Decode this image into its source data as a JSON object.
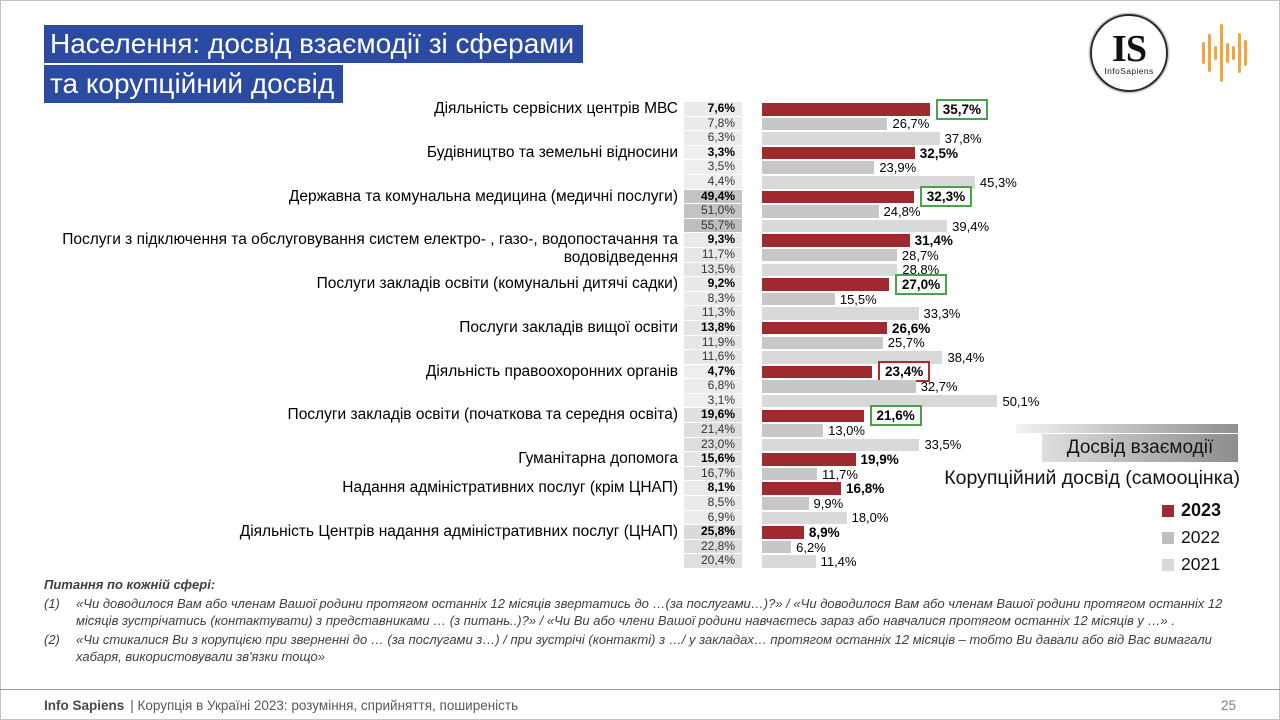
{
  "title": {
    "line1": "Населення: досвід взаємодії зі сферами",
    "line2": "та корупційний досвід"
  },
  "logos": {
    "is_initials": "IS",
    "is_name": "InfoSapiens",
    "wave_color": "#f0a63c"
  },
  "chart_data": {
    "type": "bar",
    "orientation": "horizontal",
    "title": "Населення: досвід взаємодії зі сферами та корупційний досвід",
    "series_labels": [
      "2023",
      "2022",
      "2021"
    ],
    "colors": {
      "y2023": "#9e2a2f",
      "y2022": "#c7c7c7",
      "y2021": "#d9d9d9"
    },
    "interaction_header": "Досвід взаємодії",
    "corruption_header": "Корупційний досвід (самооцінка)",
    "value_suffix": "%",
    "xlim": [
      0,
      56
    ],
    "rows": [
      {
        "label": "Діяльність сервісних центрів МВС",
        "interaction": [
          7.6,
          7.8,
          6.3
        ],
        "corruption": [
          35.7,
          26.7,
          37.8
        ],
        "box": "green"
      },
      {
        "label": "Будівництво та земельні відносини",
        "interaction": [
          3.3,
          3.5,
          4.4
        ],
        "corruption": [
          32.5,
          23.9,
          45.3
        ],
        "box": null
      },
      {
        "label": "Державна та комунальна медицина (медичні послуги)",
        "interaction": [
          49.4,
          51.0,
          55.7
        ],
        "corruption": [
          32.3,
          24.8,
          39.4
        ],
        "box": "green"
      },
      {
        "label": "Послуги з підключення та обслуговування систем електро- , газо-, водопостачання та водовідведення",
        "interaction": [
          9.3,
          11.7,
          13.5
        ],
        "corruption": [
          31.4,
          28.7,
          28.8
        ],
        "box": null
      },
      {
        "label": "Послуги закладів освіти (комунальні дитячі садки)",
        "interaction": [
          9.2,
          8.3,
          11.3
        ],
        "corruption": [
          27.0,
          15.5,
          33.3
        ],
        "box": "green"
      },
      {
        "label": "Послуги закладів вищої освіти",
        "interaction": [
          13.8,
          11.9,
          11.6
        ],
        "corruption": [
          26.6,
          25.7,
          38.4
        ],
        "box": null
      },
      {
        "label": "Діяльність правоохоронних органів",
        "interaction": [
          4.7,
          6.8,
          3.1
        ],
        "corruption": [
          23.4,
          32.7,
          50.1
        ],
        "box": "red"
      },
      {
        "label": "Послуги закладів освіти (початкова та середня освіта)",
        "interaction": [
          19.6,
          21.4,
          23.0
        ],
        "corruption": [
          21.6,
          13.0,
          33.5
        ],
        "box": "green"
      },
      {
        "label": "Гуманітарна допомога",
        "interaction": [
          15.6,
          16.7
        ],
        "corruption": [
          19.9,
          11.7
        ],
        "box": null
      },
      {
        "label": "Надання адміністративних послуг (крім ЦНАП)",
        "interaction": [
          8.1,
          8.5,
          6.9
        ],
        "corruption": [
          16.8,
          9.9,
          18.0
        ],
        "box": null
      },
      {
        "label": "Діяльність Центрів надання адміністративних послуг (ЦНАП)",
        "interaction": [
          25.8,
          22.8,
          20.4
        ],
        "corruption": [
          8.9,
          6.2,
          11.4
        ],
        "box": null
      }
    ],
    "legend": [
      {
        "label": "2023",
        "color": "#9e2a2f"
      },
      {
        "label": "2022",
        "color": "#bfbfbf"
      },
      {
        "label": "2021",
        "color": "#d9d9d9"
      }
    ]
  },
  "footnotes": {
    "heading": "Питання по кожній сфері:",
    "items": [
      {
        "num": "(1)",
        "text": "«Чи доводилося Вам або членам Вашої родини протягом останніх 12 місяців звертатись до …(за послугами…)?» / «Чи доводилося Вам або членам Вашої родини протягом останніх 12 місяців зустрічатись (контактувати) з представниками … (з питань..)?» / «Чи Ви або члени Вашої родини навчаєтесь зараз або навчалися протягом останніх 12 місяців у …» ."
      },
      {
        "num": "(2)",
        "text": "«Чи стикалися Ви з корупцією при зверненні до … (за послугами з…) / при зустрічі (контакті) з …/ у закладах… протягом останніх 12 місяців – тобто Ви давали або від Вас вимагали хабаря, використовували зв'язки тощо»"
      }
    ]
  },
  "footer": {
    "brand": "Info Sapiens",
    "rest": "| Корупція в Україні 2023: розуміння, сприйняття, поширеність",
    "page": "25"
  }
}
